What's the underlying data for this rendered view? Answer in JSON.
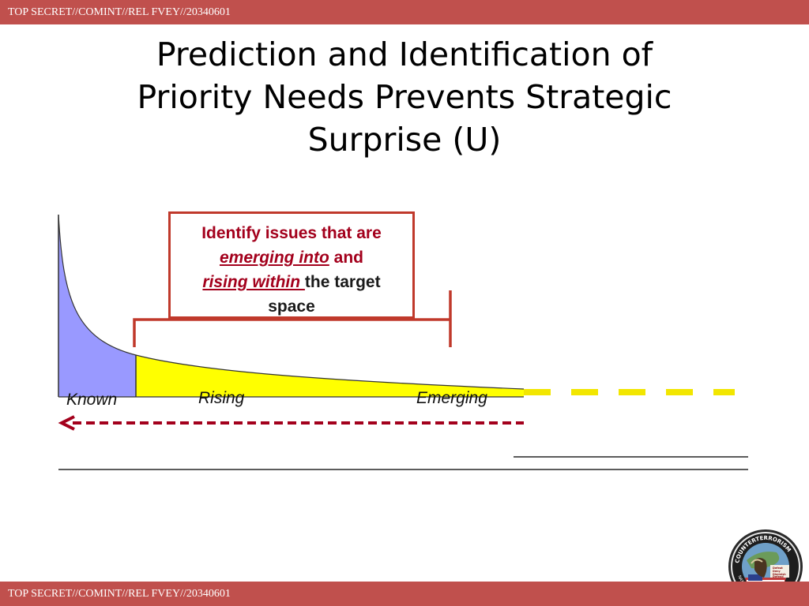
{
  "classification": {
    "top": "TOP SECRET//COMINT//REL FVEY//20340601",
    "bottom": "TOP SECRET//COMINT//REL FVEY//20340601"
  },
  "title": {
    "line1": "Prediction and Identification of",
    "line2": "Priority Needs Prevents Strategic",
    "line3": "Surprise (U)"
  },
  "callout": {
    "part1": "Identify issues that are",
    "part2": "emerging into",
    "part3": " and",
    "part4": "rising within ",
    "part5": "the target",
    "part6": "space"
  },
  "labels": {
    "known": "Known",
    "rising": "Rising",
    "emerging": "Emerging"
  },
  "seal": {
    "ring_text": "COUNTERTERRORISM",
    "ring_bottom": "NATIONAL SECURITY AGENCY",
    "line1": "Defeat",
    "line2": "Deny",
    "line3": "Diminish",
    "line4": "Defend"
  },
  "colors": {
    "banner": "#c0504d",
    "known_fill": "#9999ff",
    "rising_fill": "#ffff00",
    "callout_text": "#a3001c",
    "bracket": "#c0392b"
  }
}
